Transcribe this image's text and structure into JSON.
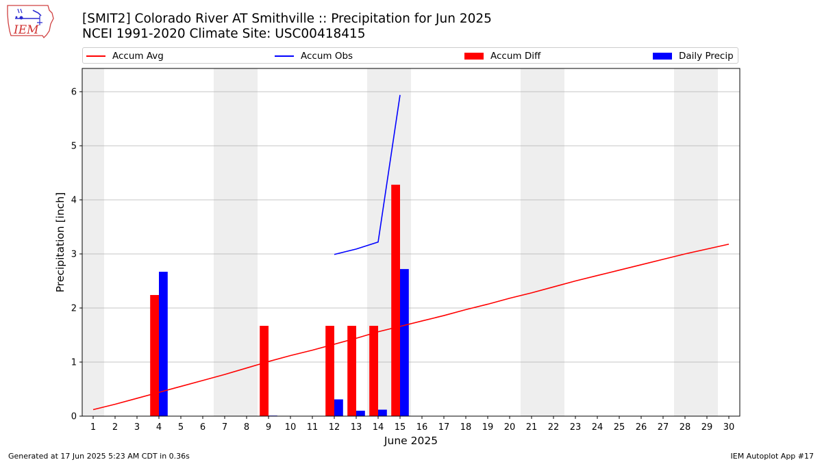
{
  "header": {
    "title_line1": "[SMIT2] Colorado River  AT Smithville :: Precipitation for Jun 2025",
    "title_line2": "NCEI 1991-2020 Climate Site: USC00418415",
    "logo_text": "IEM"
  },
  "legend": {
    "items": [
      {
        "label": "Accum Avg",
        "kind": "line"
      },
      {
        "label": "Accum Obs",
        "kind": "line"
      },
      {
        "label": "Accum Diff",
        "kind": "bar"
      },
      {
        "label": "Daily Precip",
        "kind": "bar"
      }
    ]
  },
  "colors": {
    "avg": "#ff0000",
    "obs": "#0000ff",
    "diff": "#ff0000",
    "daily": "#0000ff",
    "weekend_shade": "#eeeeee",
    "grid": "#b0b0b0"
  },
  "chart_data": {
    "type": "bar",
    "xlabel": "June 2025",
    "ylabel": "Precipitation [inch]",
    "ylim": [
      0,
      6.43
    ],
    "xlim": [
      0.5,
      30.5
    ],
    "yticks": [
      0,
      1,
      2,
      3,
      4,
      5,
      6
    ],
    "x": [
      1,
      2,
      3,
      4,
      5,
      6,
      7,
      8,
      9,
      10,
      11,
      12,
      13,
      14,
      15,
      16,
      17,
      18,
      19,
      20,
      21,
      22,
      23,
      24,
      25,
      26,
      27,
      28,
      29,
      30
    ],
    "grid": "horizontal",
    "legend_position": "top",
    "shaded_days": [
      1,
      7,
      8,
      14,
      15,
      21,
      22,
      28,
      29
    ],
    "series": [
      {
        "name": "Accum Avg",
        "kind": "line",
        "values": [
          0.12,
          0.22,
          0.33,
          0.44,
          0.55,
          0.66,
          0.77,
          0.89,
          1.01,
          1.12,
          1.22,
          1.33,
          1.44,
          1.56,
          1.66,
          1.76,
          1.86,
          1.97,
          2.07,
          2.18,
          2.28,
          2.39,
          2.5,
          2.6,
          2.7,
          2.8,
          2.9,
          3.0,
          3.09,
          3.18
        ]
      },
      {
        "name": "Accum Obs",
        "kind": "line",
        "x": [
          12,
          13,
          14,
          15
        ],
        "values": [
          2.99,
          3.09,
          3.22,
          5.94
        ]
      },
      {
        "name": "Accum Diff",
        "kind": "bar",
        "x": [
          4,
          9,
          12,
          13,
          14,
          15
        ],
        "values": [
          2.24,
          1.67,
          1.67,
          1.67,
          1.67,
          4.28
        ]
      },
      {
        "name": "Daily Precip",
        "kind": "bar",
        "x": [
          4,
          9,
          12,
          13,
          14,
          15
        ],
        "values": [
          2.67,
          0.01,
          0.31,
          0.1,
          0.12,
          2.72
        ]
      }
    ]
  },
  "footer": {
    "left": "Generated at 17 Jun 2025 5:23 AM CDT in 0.36s",
    "right": "IEM Autoplot App #17"
  }
}
